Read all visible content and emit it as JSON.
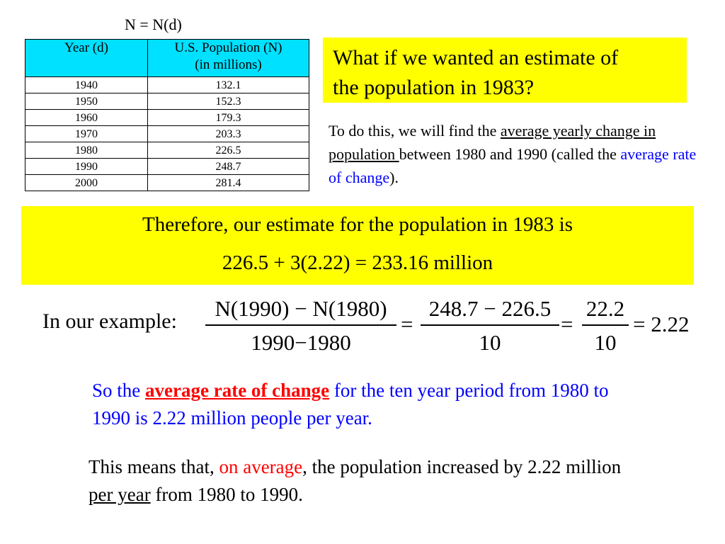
{
  "table": {
    "title": "N = N(d)",
    "header_year": "Year (d)",
    "header_pop_line1": "U.S. Population (N)",
    "header_pop_line2": "(in millions)",
    "rows": [
      {
        "year": "1940",
        "pop": "132.1"
      },
      {
        "year": "1950",
        "pop": "152.3"
      },
      {
        "year": "1960",
        "pop": "179.3"
      },
      {
        "year": "1970",
        "pop": "203.3"
      },
      {
        "year": "1980",
        "pop": "226.5"
      },
      {
        "year": "1990",
        "pop": "248.7"
      },
      {
        "year": "2000",
        "pop": "281.4"
      }
    ]
  },
  "question": {
    "line1": "What if we wanted an estimate of",
    "line2": "the population in 1983?"
  },
  "explain": {
    "part1": "To do this, we will find the ",
    "underline1": "average yearly change in population ",
    "part2": "between 1980 and 1990 (called the ",
    "blue1": "average rate of change",
    "part3": ")."
  },
  "estimate": {
    "line1": "Therefore, our estimate for the population in 1983 is",
    "line2": "226.5 + 3(2.22) = 233.16 million"
  },
  "example": {
    "label": "In our example:",
    "frac1_num": "N(1990) − N(1980)",
    "frac1_den": "1990−1980",
    "eq1": "=",
    "frac2_num": "248.7 − 226.5",
    "frac2_den": "10",
    "eq2": "=",
    "frac3_num": "22.2",
    "frac3_den": "10",
    "eq3": "= 2.22"
  },
  "conclusion": {
    "part1": "So the ",
    "red_bold": "average rate of change",
    "part2": " for the ten year period from 1980 to 1990 is 2.22 million people per year."
  },
  "meaning": {
    "part1": "This means that, ",
    "red1": "on average",
    "part2": ", the population increased by 2.22 million ",
    "underline1": "per year",
    "part3": " from 1980 to 1990."
  },
  "colors": {
    "header_fill": "#00e0ff",
    "highlight": "#ffff00",
    "blue_text": "#0000ff",
    "red_text": "#ff0000"
  }
}
